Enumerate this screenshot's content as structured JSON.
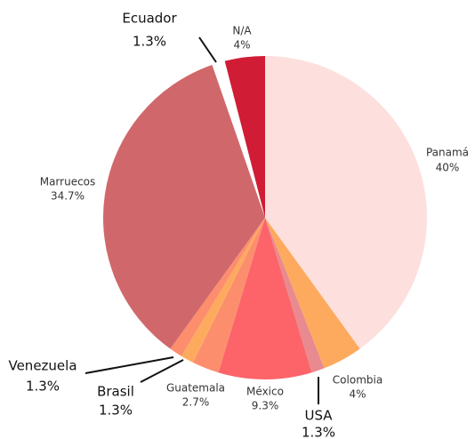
{
  "chart_data": {
    "type": "pie",
    "categories": [
      "Panamá",
      "Colombia",
      "USA",
      "México",
      "Guatemala",
      "Brasil",
      "Venezuela",
      "Marruecos",
      "Ecuador",
      "N/A"
    ],
    "values": [
      40,
      4,
      1.3,
      9.3,
      2.7,
      1.3,
      1.3,
      34.7,
      1.3,
      4
    ],
    "value_labels": [
      "40%",
      "4%",
      "1.3%",
      "9.3%",
      "2.7%",
      "1.3%",
      "1.3%",
      "34.7%",
      "1.3%",
      "4%"
    ],
    "colors": [
      "#fde0dd",
      "#fdaa5e",
      "#e88a8f",
      "#fc6469",
      "#fc8e6e",
      "#fdaa5e",
      "#fc8e6e",
      "#d0686b",
      "#ffffff",
      "#d01c34"
    ]
  }
}
